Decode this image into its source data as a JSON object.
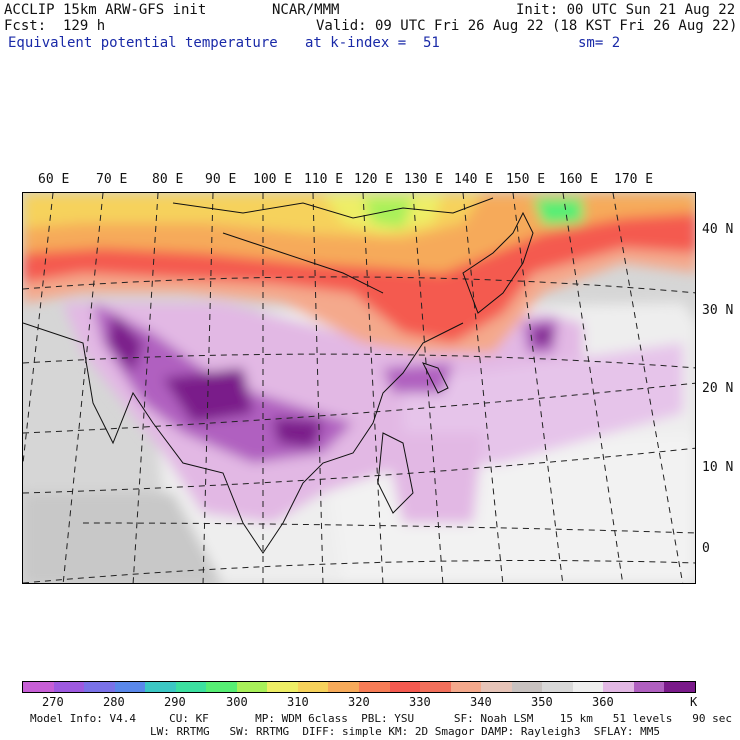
{
  "header": {
    "line1_left": "ACCLIP 15km ARW-GFS init",
    "line1_mid": "NCAR/MMM",
    "line1_right": "Init: 00 UTC Sun 21 Aug 22",
    "line2_left": "Fcst:  129 h",
    "line2_right": "Valid: 09 UTC Fri 26 Aug 22 (18 KST Fri 26 Aug 22)",
    "line3_field": "Equivalent potential temperature",
    "line3_level": "at k-index =  51",
    "line3_smooth": "sm= 2"
  },
  "map": {
    "lon_labels": [
      "60 E",
      "70 E",
      "80 E",
      "90 E",
      "100 E",
      "110 E",
      "120 E",
      "130 E",
      "140 E",
      "150 E",
      "160 E",
      "170 E"
    ],
    "lat_labels": [
      "40 N",
      "30 N",
      "20 N",
      "10 N",
      "0"
    ]
  },
  "colorbar": {
    "colors": [
      "#c75fd6",
      "#9e5ae0",
      "#7a72e8",
      "#5a88ea",
      "#3cc7c4",
      "#3ce0a0",
      "#56ee74",
      "#a8f05a",
      "#eeee66",
      "#f6d25c",
      "#f6aa5a",
      "#f67c56",
      "#f45a50",
      "#f2705c",
      "#f4a98c",
      "#e6c4b8",
      "#c8c2c0",
      "#d8d8d8",
      "#eeeeee",
      "#e2b8e4",
      "#b060c0",
      "#7a1a8a"
    ],
    "ticks": [
      "270",
      "280",
      "290",
      "300",
      "310",
      "320",
      "330",
      "340",
      "350",
      "360"
    ],
    "unit": "K"
  },
  "footer": {
    "line1": "Model Info: V4.4     CU: KF       MP: WDM 6class  PBL: YSU      SF: Noah LSM    15 km   51 levels   90 sec",
    "line2": "LW: RRTMG   SW: RRTMG  DIFF: simple KM: 2D Smagor DAMP: Rayleigh3  SFLAY: MM5"
  }
}
